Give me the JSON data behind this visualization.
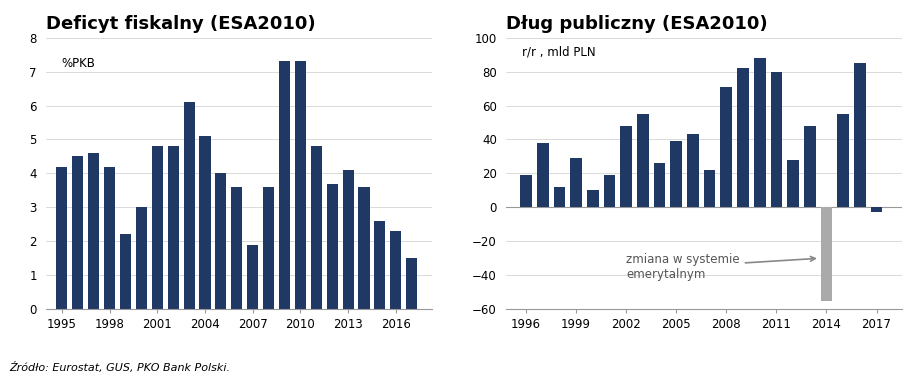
{
  "chart1_title": "Deficyt fiskalny (ESA2010)",
  "chart1_ylabel": "%PKB",
  "chart1_years": [
    1995,
    1996,
    1997,
    1998,
    1999,
    2000,
    2001,
    2002,
    2003,
    2004,
    2005,
    2006,
    2007,
    2008,
    2009,
    2010,
    2011,
    2012,
    2013,
    2014,
    2015,
    2016,
    2017
  ],
  "chart1_values": [
    4.2,
    4.5,
    4.6,
    4.2,
    2.2,
    3.0,
    4.8,
    4.8,
    6.1,
    5.1,
    4.0,
    3.6,
    1.9,
    3.6,
    7.3,
    7.3,
    4.8,
    3.7,
    4.1,
    3.6,
    2.6,
    2.3,
    1.5
  ],
  "chart1_ylim": [
    0,
    8
  ],
  "chart1_yticks": [
    0,
    1,
    2,
    3,
    4,
    5,
    6,
    7,
    8
  ],
  "chart1_xticks": [
    1995,
    1998,
    2001,
    2004,
    2007,
    2010,
    2013,
    2016
  ],
  "chart2_title": "Dług publiczny (ESA2010)",
  "chart2_ylabel": "r/r , mld PLN",
  "chart2_years": [
    1996,
    1997,
    1998,
    1999,
    2000,
    2001,
    2002,
    2003,
    2004,
    2005,
    2006,
    2007,
    2008,
    2009,
    2010,
    2011,
    2012,
    2013,
    2014,
    2015,
    2016,
    2017
  ],
  "chart2_values": [
    19,
    38,
    12,
    29,
    10,
    19,
    48,
    55,
    26,
    39,
    43,
    22,
    71,
    82,
    88,
    80,
    28,
    48,
    -55,
    55,
    85,
    -3
  ],
  "chart2_ylim": [
    -60,
    100
  ],
  "chart2_yticks": [
    -60,
    -40,
    -20,
    0,
    20,
    40,
    60,
    80,
    100
  ],
  "chart2_xticks": [
    1996,
    1999,
    2002,
    2005,
    2008,
    2011,
    2014,
    2017
  ],
  "bar_color": "#1F3864",
  "special_bar_color": "#aaaaaa",
  "source_text": "Źródło: Eurostat, GUS, PKO Bank Polski.",
  "annotation_text": "zmiana w systemie\nemerytalnym",
  "title_fontsize": 13,
  "label_fontsize": 8.5,
  "tick_fontsize": 8.5,
  "source_fontsize": 8
}
